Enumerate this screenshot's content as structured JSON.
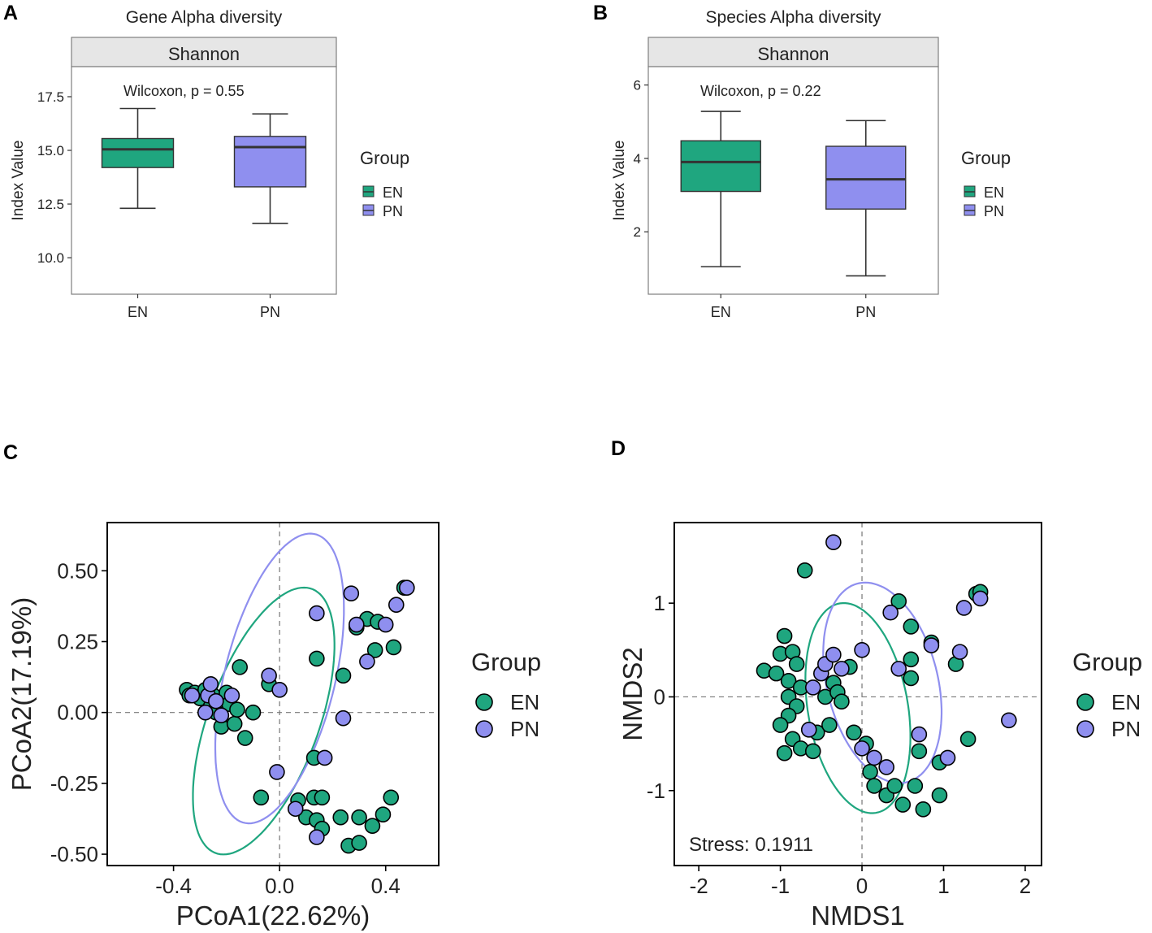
{
  "colors": {
    "EN": "#1fa67f",
    "PN": "#8f8fef",
    "axis": "#000000",
    "strip": "#e6e6e6",
    "frame": "#7f7f7f"
  },
  "legend_title": "Group",
  "chart_data": [
    {
      "panel": "A",
      "type": "box",
      "title": "Gene Alpha diversity",
      "facet": "Shannon",
      "annotation": "Wilcoxon, p = 0.55",
      "xlabel": "",
      "ylabel": "Index Value",
      "categories": [
        "EN",
        "PN"
      ],
      "ylim": [
        8.3,
        18.9
      ],
      "yticks": [
        10.0,
        12.5,
        15.0,
        17.5
      ],
      "ytick_labels": [
        "10.0",
        "12.5",
        "15.0",
        "17.5"
      ],
      "boxes": [
        {
          "group": "EN",
          "min": 12.3,
          "q1": 14.2,
          "median": 15.05,
          "q3": 15.55,
          "max": 16.95
        },
        {
          "group": "PN",
          "min": 11.6,
          "q1": 13.3,
          "median": 15.15,
          "q3": 15.65,
          "max": 16.7
        }
      ]
    },
    {
      "panel": "B",
      "type": "box",
      "title": "Species Alpha diversity",
      "facet": "Shannon",
      "annotation": "Wilcoxon, p = 0.22",
      "xlabel": "",
      "ylabel": "Index Value",
      "categories": [
        "EN",
        "PN"
      ],
      "ylim": [
        0.3,
        6.5
      ],
      "yticks": [
        2,
        4,
        6
      ],
      "ytick_labels": [
        "2",
        "4",
        "6"
      ],
      "boxes": [
        {
          "group": "EN",
          "min": 1.05,
          "q1": 3.1,
          "median": 3.9,
          "q3": 4.48,
          "max": 5.28
        },
        {
          "group": "PN",
          "min": 0.8,
          "q1": 2.62,
          "median": 3.43,
          "q3": 4.33,
          "max": 5.03
        }
      ]
    },
    {
      "panel": "C",
      "type": "scatter",
      "xlabel": "PCoA1(22.62%)",
      "ylabel": "PCoA2(17.19%)",
      "xlim": [
        -0.65,
        0.6
      ],
      "ylim": [
        -0.54,
        0.67
      ],
      "xticks": [
        -0.4,
        0.0,
        0.4
      ],
      "xtick_labels": [
        "-0.4",
        "0.0",
        "0.4"
      ],
      "yticks": [
        -0.5,
        -0.25,
        0.0,
        0.25,
        0.5
      ],
      "ytick_labels": [
        "-0.50",
        "-0.25",
        "0.00",
        "0.25",
        "0.50"
      ],
      "reference_lines": {
        "x": 0,
        "y": 0
      },
      "ellipses": [
        {
          "group": "EN",
          "cx": -0.06,
          "cy": -0.03,
          "rx": 0.65,
          "ry": 0.34,
          "angle": 42
        },
        {
          "group": "PN",
          "cx": 0.0,
          "cy": 0.12,
          "rx": 0.63,
          "ry": 0.37,
          "angle": 52
        }
      ],
      "series": [
        {
          "name": "EN",
          "points": [
            [
              -0.35,
              0.08
            ],
            [
              -0.34,
              0.06
            ],
            [
              -0.32,
              0.07
            ],
            [
              -0.3,
              0.05
            ],
            [
              -0.28,
              0.08
            ],
            [
              -0.26,
              0.02
            ],
            [
              -0.25,
              0.06
            ],
            [
              -0.24,
              0.0
            ],
            [
              -0.22,
              -0.05
            ],
            [
              -0.2,
              0.07
            ],
            [
              -0.19,
              0.03
            ],
            [
              -0.17,
              -0.04
            ],
            [
              -0.16,
              0.01
            ],
            [
              -0.15,
              0.16
            ],
            [
              -0.13,
              -0.09
            ],
            [
              -0.1,
              0.0
            ],
            [
              -0.04,
              0.1
            ],
            [
              -0.07,
              -0.3
            ],
            [
              0.14,
              0.19
            ],
            [
              0.24,
              0.13
            ],
            [
              0.29,
              0.3
            ],
            [
              0.33,
              0.33
            ],
            [
              0.37,
              0.32
            ],
            [
              0.36,
              0.22
            ],
            [
              0.43,
              0.23
            ],
            [
              0.47,
              0.44
            ],
            [
              0.07,
              -0.31
            ],
            [
              0.13,
              -0.3
            ],
            [
              0.16,
              -0.3
            ],
            [
              0.1,
              -0.37
            ],
            [
              0.14,
              -0.38
            ],
            [
              0.16,
              -0.41
            ],
            [
              0.13,
              -0.16
            ],
            [
              0.23,
              -0.37
            ],
            [
              0.3,
              -0.37
            ],
            [
              0.35,
              -0.4
            ],
            [
              0.39,
              -0.36
            ],
            [
              0.42,
              -0.3
            ],
            [
              0.26,
              -0.47
            ],
            [
              0.3,
              -0.46
            ]
          ]
        },
        {
          "name": "PN",
          "points": [
            [
              -0.33,
              0.06
            ],
            [
              -0.28,
              0.0
            ],
            [
              -0.27,
              0.06
            ],
            [
              -0.26,
              0.1
            ],
            [
              -0.24,
              0.04
            ],
            [
              -0.22,
              -0.01
            ],
            [
              -0.18,
              0.06
            ],
            [
              -0.04,
              0.13
            ],
            [
              0.0,
              0.08
            ],
            [
              0.14,
              0.35
            ],
            [
              0.27,
              0.42
            ],
            [
              0.29,
              0.31
            ],
            [
              0.33,
              0.18
            ],
            [
              0.4,
              0.31
            ],
            [
              0.44,
              0.38
            ],
            [
              0.48,
              0.44
            ],
            [
              0.24,
              -0.02
            ],
            [
              0.17,
              -0.16
            ],
            [
              -0.01,
              -0.21
            ],
            [
              0.06,
              -0.34
            ],
            [
              0.14,
              -0.44
            ]
          ]
        }
      ]
    },
    {
      "panel": "D",
      "type": "scatter",
      "xlabel": "NMDS1",
      "ylabel": "NMDS2",
      "annotation": "Stress: 0.1911",
      "xlim": [
        -2.3,
        2.2
      ],
      "ylim": [
        -1.8,
        1.86
      ],
      "xticks": [
        -2,
        -1,
        0,
        1,
        2
      ],
      "xtick_labels": [
        "-2",
        "-1",
        "0",
        "1",
        "2"
      ],
      "yticks": [
        -1,
        0,
        1
      ],
      "ytick_labels": [
        "-1",
        "0",
        "1"
      ],
      "reference_lines": {
        "x": 0,
        "y": 0
      },
      "ellipses": [
        {
          "group": "EN",
          "cx": -0.05,
          "cy": -0.12,
          "rx": 1.45,
          "ry": 1.1,
          "angle": -45
        },
        {
          "group": "PN",
          "cx": 0.25,
          "cy": 0.15,
          "rx": 1.55,
          "ry": 1.1,
          "angle": -30
        }
      ],
      "series": [
        {
          "name": "EN",
          "points": [
            [
              -1.2,
              0.28
            ],
            [
              -1.0,
              0.46
            ],
            [
              -0.95,
              0.65
            ],
            [
              -0.85,
              0.48
            ],
            [
              -0.8,
              0.35
            ],
            [
              -1.05,
              0.25
            ],
            [
              -0.9,
              0.17
            ],
            [
              -0.75,
              0.1
            ],
            [
              -0.9,
              0.0
            ],
            [
              -0.8,
              -0.1
            ],
            [
              -0.9,
              -0.2
            ],
            [
              -1.0,
              -0.3
            ],
            [
              -0.85,
              -0.45
            ],
            [
              -0.75,
              -0.55
            ],
            [
              -0.6,
              -0.58
            ],
            [
              -0.55,
              -0.38
            ],
            [
              -0.4,
              -0.3
            ],
            [
              -0.45,
              0.0
            ],
            [
              -0.35,
              0.15
            ],
            [
              -0.3,
              0.05
            ],
            [
              -0.25,
              -0.05
            ],
            [
              -0.15,
              0.32
            ],
            [
              -0.1,
              -0.38
            ],
            [
              0.05,
              -0.5
            ],
            [
              0.1,
              -0.8
            ],
            [
              0.15,
              -0.95
            ],
            [
              0.3,
              -1.05
            ],
            [
              0.4,
              -0.95
            ],
            [
              0.5,
              -1.15
            ],
            [
              0.6,
              0.2
            ],
            [
              0.6,
              0.4
            ],
            [
              0.7,
              -0.58
            ],
            [
              0.65,
              -0.95
            ],
            [
              0.75,
              -1.2
            ],
            [
              0.95,
              -0.7
            ],
            [
              0.95,
              -1.05
            ],
            [
              1.15,
              0.35
            ],
            [
              1.3,
              -0.45
            ],
            [
              1.4,
              1.1
            ],
            [
              1.45,
              1.12
            ],
            [
              -0.95,
              -0.6
            ],
            [
              -0.7,
              1.35
            ],
            [
              0.45,
              1.02
            ],
            [
              0.6,
              0.75
            ],
            [
              0.85,
              0.58
            ]
          ]
        },
        {
          "name": "PN",
          "points": [
            [
              -0.35,
              1.65
            ],
            [
              -0.6,
              0.1
            ],
            [
              -0.5,
              0.25
            ],
            [
              -0.45,
              0.35
            ],
            [
              -0.35,
              0.45
            ],
            [
              -0.25,
              0.3
            ],
            [
              0.0,
              0.5
            ],
            [
              -0.65,
              -0.35
            ],
            [
              0.0,
              -0.55
            ],
            [
              0.15,
              -0.65
            ],
            [
              0.3,
              -0.75
            ],
            [
              0.45,
              0.3
            ],
            [
              0.35,
              0.9
            ],
            [
              0.85,
              0.55
            ],
            [
              1.2,
              0.48
            ],
            [
              1.25,
              0.95
            ],
            [
              1.45,
              1.05
            ],
            [
              1.8,
              -0.25
            ],
            [
              0.7,
              -0.4
            ],
            [
              1.05,
              -0.65
            ]
          ]
        }
      ]
    }
  ],
  "panel_labels": [
    "A",
    "B",
    "C",
    "D"
  ]
}
